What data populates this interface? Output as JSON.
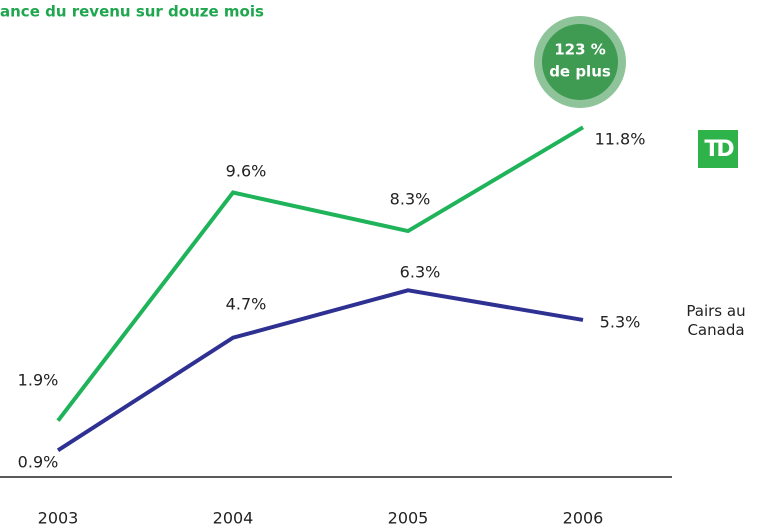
{
  "chart_data": {
    "type": "line",
    "title": "ance du revenu sur douze mois",
    "annotation": [
      "123 %",
      "de plus"
    ],
    "categories": [
      "2003",
      "2004",
      "2005",
      "2006"
    ],
    "series": [
      {
        "name": "TD",
        "color": "#1fb35a",
        "values": [
          1.9,
          9.6,
          8.3,
          11.8
        ],
        "value_labels": [
          "1.9%",
          "9.6%",
          "8.3%",
          "11.8%"
        ]
      },
      {
        "name": "Pairs au Canada",
        "color": "#2e3192",
        "values": [
          0.9,
          4.7,
          6.3,
          5.3
        ],
        "value_labels": [
          "0.9%",
          "4.7%",
          "6.3%",
          "5.3%"
        ]
      }
    ],
    "ylim": [
      0,
      12
    ]
  }
}
